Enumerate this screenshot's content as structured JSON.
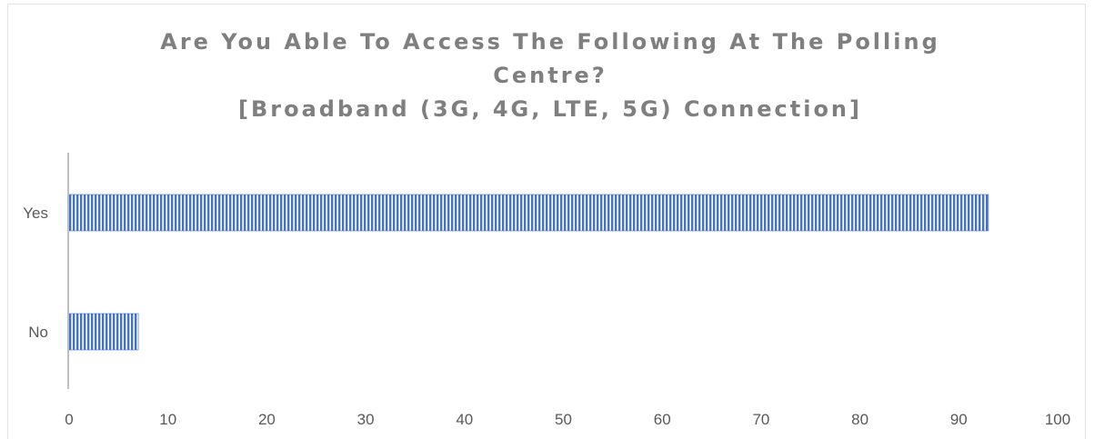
{
  "chart_data": {
    "type": "bar",
    "orientation": "horizontal",
    "title_lines": [
      "Are You Able To Access The Following At The Polling",
      "Centre?",
      "[Broadband (3G, 4G, LTE, 5G) Connection]"
    ],
    "categories": [
      "Yes",
      "No"
    ],
    "values": [
      93,
      7
    ],
    "xlim": [
      0,
      100
    ],
    "x_ticks": [
      "0",
      "10",
      "20",
      "30",
      "40",
      "50",
      "60",
      "70",
      "80",
      "90",
      "100"
    ],
    "grid": false,
    "legend": "none",
    "bar_color": "#4472c4",
    "bar_pattern": "vertical-stripes"
  }
}
